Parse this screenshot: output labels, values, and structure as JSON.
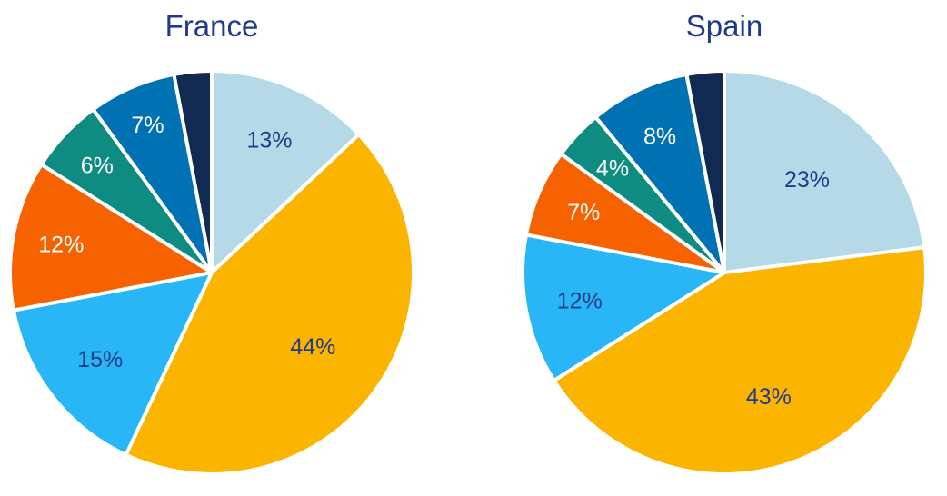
{
  "chart_data": [
    {
      "type": "pie",
      "title": "France",
      "start_angle_deg": 0,
      "direction": "clockwise",
      "slices": [
        {
          "label": "13%",
          "value": 13,
          "color": "#b5d9e6",
          "label_color": "#1f3b8a"
        },
        {
          "label": "44%",
          "value": 44,
          "color": "#fbb400",
          "label_color": "#1f3b8a"
        },
        {
          "label": "15%",
          "value": 15,
          "color": "#29b6f6",
          "label_color": "#1f3b8a"
        },
        {
          "label": "12%",
          "value": 12,
          "color": "#f76200",
          "label_color": "#ffffff"
        },
        {
          "label": "6%",
          "value": 6,
          "color": "#0e8c82",
          "label_color": "#ffffff"
        },
        {
          "label": "7%",
          "value": 7,
          "color": "#0071b3",
          "label_color": "#ffffff"
        },
        {
          "label": "",
          "value": 3,
          "color": "#102a52",
          "label_color": "#ffffff"
        }
      ]
    },
    {
      "type": "pie",
      "title": "Spain",
      "start_angle_deg": 0,
      "direction": "clockwise",
      "slices": [
        {
          "label": "23%",
          "value": 23,
          "color": "#b5d9e6",
          "label_color": "#1f3b8a"
        },
        {
          "label": "43%",
          "value": 43,
          "color": "#fbb400",
          "label_color": "#1f3b8a"
        },
        {
          "label": "12%",
          "value": 12,
          "color": "#29b6f6",
          "label_color": "#1f3b8a"
        },
        {
          "label": "7%",
          "value": 7,
          "color": "#f76200",
          "label_color": "#ffffff"
        },
        {
          "label": "4%",
          "value": 4,
          "color": "#0e8c82",
          "label_color": "#ffffff"
        },
        {
          "label": "8%",
          "value": 8,
          "color": "#0071b3",
          "label_color": "#ffffff"
        },
        {
          "label": "",
          "value": 3,
          "color": "#102a52",
          "label_color": "#ffffff"
        }
      ]
    }
  ]
}
